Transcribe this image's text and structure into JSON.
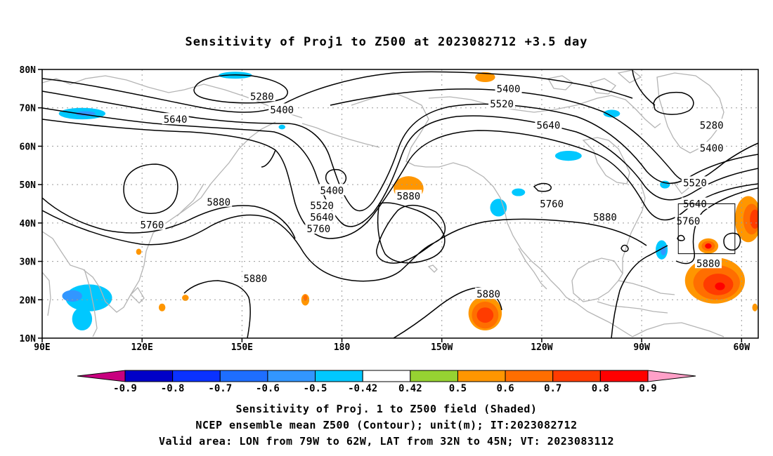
{
  "title": "Sensitivity of Proj1 to Z500 at 2023082712 +3.5 day",
  "map": {
    "lon_range": [
      90,
      305
    ],
    "lat_range": [
      10,
      80
    ],
    "lat_ticks": [
      {
        "value": 80,
        "label": "80N"
      },
      {
        "value": 70,
        "label": "70N"
      },
      {
        "value": 60,
        "label": "60N"
      },
      {
        "value": 50,
        "label": "50N"
      },
      {
        "value": 40,
        "label": "40N"
      },
      {
        "value": 30,
        "label": "30N"
      },
      {
        "value": 20,
        "label": "20N"
      },
      {
        "value": 10,
        "label": "10N"
      }
    ],
    "lon_ticks": [
      {
        "value": 90,
        "label": "90E"
      },
      {
        "value": 120,
        "label": "120E"
      },
      {
        "value": 150,
        "label": "150E"
      },
      {
        "value": 180,
        "label": "180"
      },
      {
        "value": 210,
        "label": "150W"
      },
      {
        "value": 240,
        "label": "120W"
      },
      {
        "value": 270,
        "label": "90W"
      },
      {
        "value": 300,
        "label": "60W"
      }
    ],
    "grid": "dotted",
    "contour_labels": [
      {
        "text": "5280",
        "lon": 156,
        "lat": 73
      },
      {
        "text": "5400",
        "lon": 162,
        "lat": 69.5
      },
      {
        "text": "5640",
        "lon": 130,
        "lat": 67
      },
      {
        "text": "5400",
        "lon": 230,
        "lat": 75
      },
      {
        "text": "5520",
        "lon": 228,
        "lat": 71
      },
      {
        "text": "5640",
        "lon": 242,
        "lat": 65.5
      },
      {
        "text": "5280",
        "lon": 291,
        "lat": 65.5
      },
      {
        "text": "5400",
        "lon": 291,
        "lat": 59.5
      },
      {
        "text": "5400",
        "lon": 177,
        "lat": 48.5
      },
      {
        "text": "5880",
        "lon": 143,
        "lat": 45.5
      },
      {
        "text": "5520",
        "lon": 174,
        "lat": 44.5
      },
      {
        "text": "5640",
        "lon": 174,
        "lat": 41.5
      },
      {
        "text": "5760",
        "lon": 173,
        "lat": 38.5
      },
      {
        "text": "5880",
        "lon": 200,
        "lat": 47
      },
      {
        "text": "5760",
        "lon": 243,
        "lat": 45
      },
      {
        "text": "5880",
        "lon": 259,
        "lat": 41.5
      },
      {
        "text": "5760",
        "lon": 123,
        "lat": 39.5
      },
      {
        "text": "5520",
        "lon": 286,
        "lat": 50.5
      },
      {
        "text": "5640",
        "lon": 286,
        "lat": 45
      },
      {
        "text": "5760",
        "lon": 284,
        "lat": 40.5
      },
      {
        "text": "5880",
        "lon": 290,
        "lat": 29.5
      },
      {
        "text": "5880",
        "lon": 154,
        "lat": 25.5
      },
      {
        "text": "5880",
        "lon": 224,
        "lat": 21.5
      }
    ],
    "valid_box": {
      "lon_min": 281,
      "lon_max": 298,
      "lat_min": 32,
      "lat_max": 45
    }
  },
  "shading": [
    {
      "lon": 102,
      "lat": 68.5,
      "r_lon": 7,
      "r_lat": 1.5,
      "value": -0.5
    },
    {
      "lon": 103,
      "lat": 68.5,
      "r_lon": 3,
      "r_lat": 0.6,
      "value": -0.6
    },
    {
      "lon": 148,
      "lat": 78.5,
      "r_lon": 5,
      "r_lat": 0.9,
      "value": -0.5
    },
    {
      "lon": 162,
      "lat": 65,
      "r_lon": 1,
      "r_lat": 0.6,
      "value": -0.5
    },
    {
      "lon": 104,
      "lat": 20.5,
      "r_lon": 7,
      "r_lat": 3.5,
      "value": -0.5
    },
    {
      "lon": 99,
      "lat": 21,
      "r_lon": 3,
      "r_lat": 1.5,
      "value": -0.6
    },
    {
      "lon": 102,
      "lat": 15,
      "r_lon": 3,
      "r_lat": 3,
      "value": -0.5
    },
    {
      "lon": 223,
      "lat": 78,
      "r_lon": 3,
      "r_lat": 1.3,
      "value": 0.5
    },
    {
      "lon": 261,
      "lat": 68.5,
      "r_lon": 2.5,
      "r_lat": 1,
      "value": -0.5
    },
    {
      "lon": 248,
      "lat": 57.5,
      "r_lon": 4,
      "r_lat": 1.3,
      "value": -0.5
    },
    {
      "lon": 233,
      "lat": 48,
      "r_lon": 2,
      "r_lat": 1,
      "value": -0.5
    },
    {
      "lon": 227,
      "lat": 44,
      "r_lon": 2.5,
      "r_lat": 2.3,
      "value": -0.5
    },
    {
      "lon": 277,
      "lat": 50,
      "r_lon": 1.5,
      "r_lat": 1,
      "value": -0.5
    },
    {
      "lon": 276,
      "lat": 33,
      "r_lon": 1.8,
      "r_lat": 2.5,
      "value": -0.5
    },
    {
      "lon": 276.5,
      "lat": 32.8,
      "r_lon": 0.8,
      "r_lat": 1.2,
      "value": -0.6
    },
    {
      "lon": 200,
      "lat": 49,
      "r_lon": 4.5,
      "r_lat": 3.2,
      "value": 0.5
    },
    {
      "lon": 292,
      "lat": 25,
      "r_lon": 9,
      "r_lat": 6,
      "value": 0.5
    },
    {
      "lon": 292.5,
      "lat": 24.5,
      "r_lon": 7,
      "r_lat": 4.5,
      "value": 0.6
    },
    {
      "lon": 293,
      "lat": 24,
      "r_lon": 4.5,
      "r_lat": 2.8,
      "value": 0.7
    },
    {
      "lon": 293.5,
      "lat": 23.5,
      "r_lon": 1.5,
      "r_lat": 1,
      "value": 0.8
    },
    {
      "lon": 290,
      "lat": 34,
      "r_lon": 3,
      "r_lat": 2,
      "value": 0.5
    },
    {
      "lon": 290,
      "lat": 34,
      "r_lon": 2,
      "r_lat": 1.3,
      "value": 0.6
    },
    {
      "lon": 290,
      "lat": 34,
      "r_lon": 1,
      "r_lat": 0.7,
      "value": 0.8
    },
    {
      "lon": 223,
      "lat": 16.5,
      "r_lon": 5,
      "r_lat": 4.5,
      "value": 0.5
    },
    {
      "lon": 223,
      "lat": 16,
      "r_lon": 4,
      "r_lat": 3.5,
      "value": 0.6
    },
    {
      "lon": 223,
      "lat": 16,
      "r_lon": 2.5,
      "r_lat": 2,
      "value": 0.7
    },
    {
      "lon": 302,
      "lat": 41,
      "r_lon": 4,
      "r_lat": 6,
      "value": 0.5
    },
    {
      "lon": 303,
      "lat": 41,
      "r_lon": 2.5,
      "r_lat": 4,
      "value": 0.6
    },
    {
      "lon": 304,
      "lat": 41,
      "r_lon": 1.5,
      "r_lat": 2.5,
      "value": 0.7
    },
    {
      "lon": 169,
      "lat": 20,
      "r_lon": 1.2,
      "r_lat": 1.5,
      "value": 0.5
    },
    {
      "lon": 169,
      "lat": 20.5,
      "r_lon": 0.6,
      "r_lat": 0.8,
      "value": 0.6
    },
    {
      "lon": 133,
      "lat": 20.5,
      "r_lon": 1,
      "r_lat": 0.8,
      "value": 0.5
    },
    {
      "lon": 119,
      "lat": 32.5,
      "r_lon": 0.8,
      "r_lat": 0.8,
      "value": 0.5
    },
    {
      "lon": 126,
      "lat": 18,
      "r_lon": 1,
      "r_lat": 1,
      "value": 0.5
    },
    {
      "lon": 304,
      "lat": 18,
      "r_lon": 0.8,
      "r_lat": 1,
      "value": 0.5
    }
  ],
  "colorbar": {
    "boundaries": [
      "-0.9",
      "-0.8",
      "-0.7",
      "-0.6",
      "-0.5",
      "-0.42",
      "0.42",
      "0.5",
      "0.6",
      "0.7",
      "0.8",
      "0.9"
    ],
    "colors": [
      "#0000c8",
      "#0a32ff",
      "#1e6eff",
      "#3296ff",
      "#00c8ff",
      "#ffffff",
      "#96d232",
      "#ff9600",
      "#ff6e00",
      "#ff3c00",
      "#ff0000"
    ],
    "low_color": "#c8007f",
    "high_color": "#ffa0c8"
  },
  "captions": [
    "Sensitivity of Proj. 1 to Z500 field (Shaded)",
    "NCEP ensemble mean Z500 (Contour); unit(m); IT:2023082712",
    "Valid area: LON from 79W to 62W, LAT from 32N to 45N; VT: 2023083112"
  ]
}
